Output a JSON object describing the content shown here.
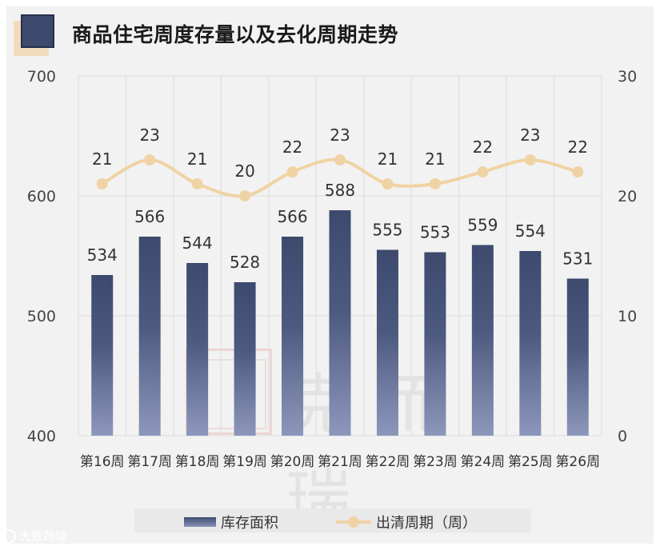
{
  "title": "商品住宅周度存量以及去化周期走势",
  "chart_data": {
    "type": "bar+line",
    "categories": [
      "第16周",
      "第17周",
      "第18周",
      "第19周",
      "第20周",
      "第21周",
      "第22周",
      "第23周",
      "第24周",
      "第25周",
      "第26周"
    ],
    "series": [
      {
        "name": "库存面积",
        "type": "bar",
        "axis": "left",
        "values": [
          534,
          566,
          544,
          528,
          566,
          588,
          555,
          553,
          559,
          554,
          531
        ]
      },
      {
        "name": "出清周期（周）",
        "type": "line",
        "axis": "right",
        "values": [
          21,
          23,
          21,
          20,
          22,
          23,
          21,
          21,
          22,
          23,
          22
        ]
      }
    ],
    "y_left": {
      "min": 400,
      "max": 700,
      "ticks": [
        "700",
        "600",
        "500",
        "400"
      ]
    },
    "y_right": {
      "min": 0,
      "max": 30,
      "ticks": [
        "30",
        "20",
        "10",
        "0"
      ]
    },
    "grid": true,
    "legend": "bottom"
  },
  "legend": {
    "bar_label": "库存面积",
    "line_label": "出清周期（周）"
  },
  "source_label": "大数跨境",
  "watermark_text": "克而瑞",
  "colors": {
    "bar_top": "#3d4a6e",
    "bar_bottom": "#8d97bb",
    "line": "#f0d3a4",
    "grid": "#dcdcdc"
  }
}
